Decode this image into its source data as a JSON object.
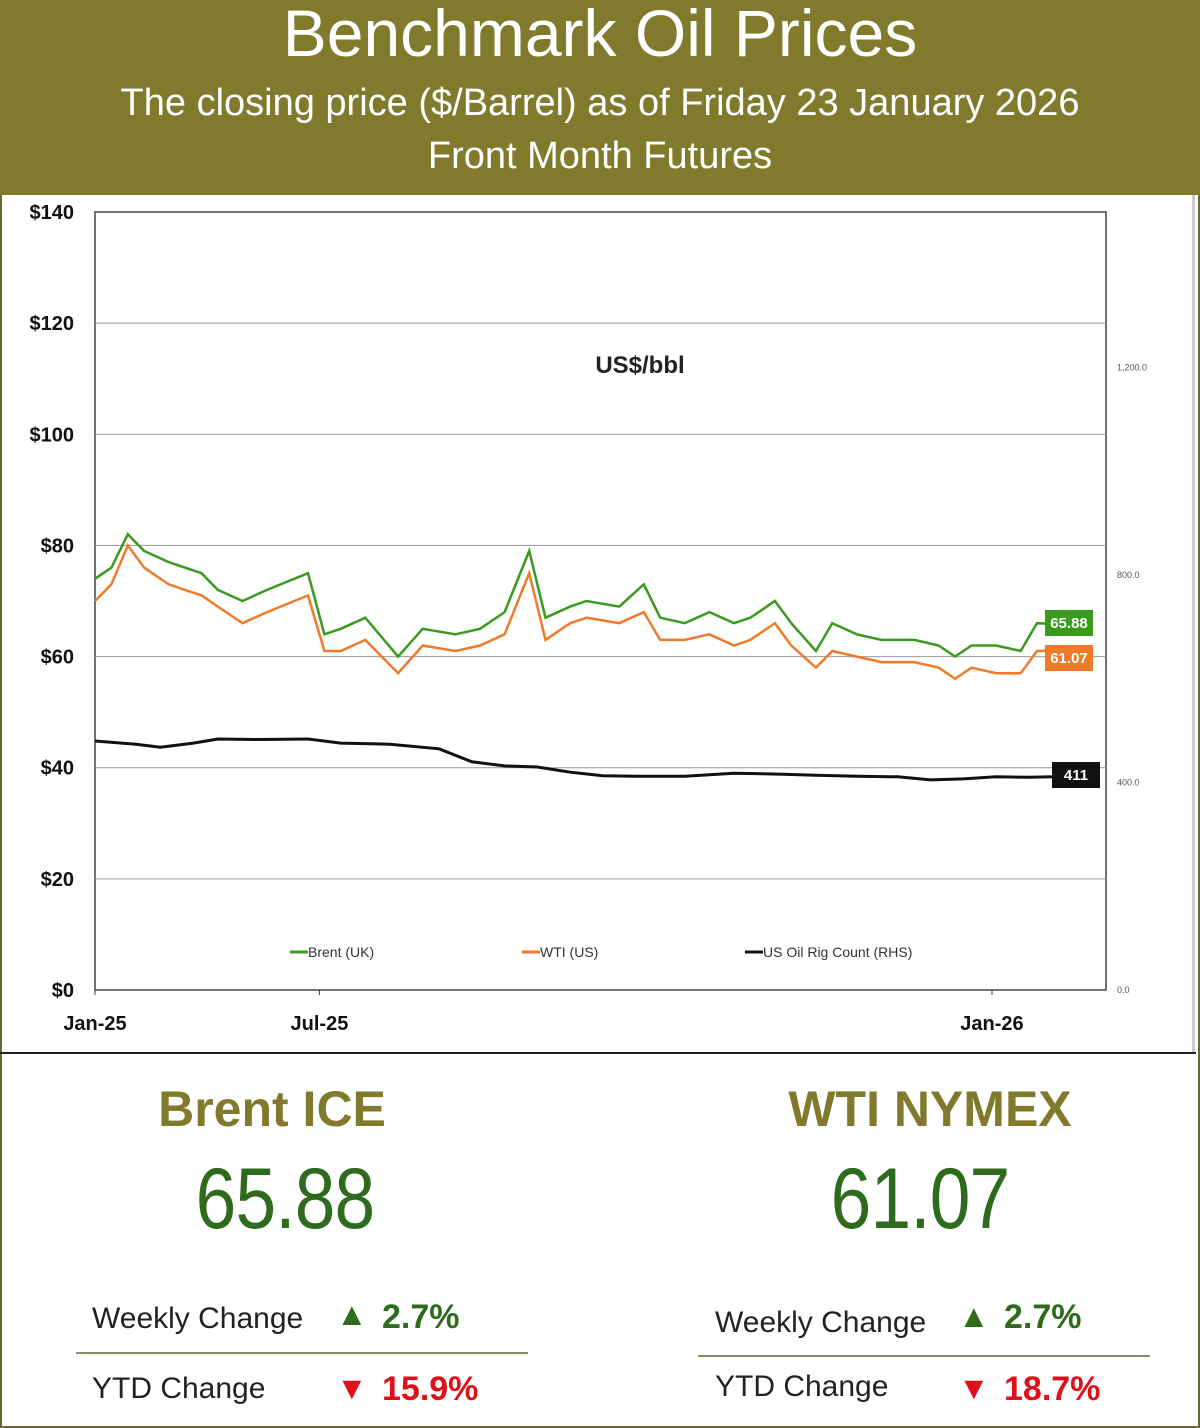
{
  "header": {
    "title": "Benchmark Oil Prices",
    "subtitle": "The closing price ($/Barrel) as of Friday 23 January 2026",
    "subtitle2": "Front Month  Futures"
  },
  "chart_data": {
    "type": "line",
    "title": "US$/bbl",
    "ylim": [
      0,
      140
    ],
    "y_ticks": [
      "$0",
      "$20",
      "$40",
      "$60",
      "$80",
      "$100",
      "$120",
      "$140"
    ],
    "y2_ticks": [
      "0.0",
      "400.0",
      "800.0",
      "1,200.0"
    ],
    "y2lim": [
      0,
      1500
    ],
    "x_ticks": [
      "Jan-25",
      "Jul-25",
      "Jan-26"
    ],
    "grid": true,
    "legend": "bottom",
    "series": [
      {
        "name": "Brent (UK)",
        "color": "#3a9a1e",
        "end_label": "65.88",
        "points": [
          [
            0,
            74
          ],
          [
            0.02,
            76
          ],
          [
            0.04,
            82
          ],
          [
            0.06,
            79
          ],
          [
            0.09,
            77
          ],
          [
            0.11,
            76
          ],
          [
            0.13,
            75
          ],
          [
            0.15,
            72
          ],
          [
            0.18,
            70
          ],
          [
            0.21,
            72
          ],
          [
            0.26,
            75
          ],
          [
            0.28,
            64
          ],
          [
            0.3,
            65
          ],
          [
            0.33,
            67
          ],
          [
            0.37,
            60
          ],
          [
            0.4,
            65
          ],
          [
            0.44,
            64
          ],
          [
            0.47,
            65
          ],
          [
            0.5,
            68
          ],
          [
            0.53,
            79
          ],
          [
            0.55,
            67
          ],
          [
            0.58,
            69
          ],
          [
            0.6,
            70
          ],
          [
            0.64,
            69
          ],
          [
            0.67,
            73
          ],
          [
            0.69,
            67
          ],
          [
            0.72,
            66
          ],
          [
            0.75,
            68
          ],
          [
            0.78,
            66
          ],
          [
            0.8,
            67
          ],
          [
            0.83,
            70
          ],
          [
            0.85,
            66
          ],
          [
            0.88,
            61
          ],
          [
            0.9,
            66
          ],
          [
            0.93,
            64
          ],
          [
            0.96,
            63
          ],
          [
            1.0,
            63
          ],
          [
            1.03,
            62
          ],
          [
            1.05,
            60
          ],
          [
            1.07,
            62
          ],
          [
            1.1,
            62
          ],
          [
            1.13,
            61
          ],
          [
            1.15,
            66
          ],
          [
            1.17,
            65.88
          ]
        ]
      },
      {
        "name": "WTI (US)",
        "color": "#f07a2a",
        "end_label": "61.07",
        "points": [
          [
            0,
            70
          ],
          [
            0.02,
            73
          ],
          [
            0.04,
            80
          ],
          [
            0.06,
            76
          ],
          [
            0.09,
            73
          ],
          [
            0.11,
            72
          ],
          [
            0.13,
            71
          ],
          [
            0.15,
            69
          ],
          [
            0.18,
            66
          ],
          [
            0.21,
            68
          ],
          [
            0.26,
            71
          ],
          [
            0.28,
            61
          ],
          [
            0.3,
            61
          ],
          [
            0.33,
            63
          ],
          [
            0.37,
            57
          ],
          [
            0.4,
            62
          ],
          [
            0.44,
            61
          ],
          [
            0.47,
            62
          ],
          [
            0.5,
            64
          ],
          [
            0.53,
            75
          ],
          [
            0.55,
            63
          ],
          [
            0.58,
            66
          ],
          [
            0.6,
            67
          ],
          [
            0.64,
            66
          ],
          [
            0.67,
            68
          ],
          [
            0.69,
            63
          ],
          [
            0.72,
            63
          ],
          [
            0.75,
            64
          ],
          [
            0.78,
            62
          ],
          [
            0.8,
            63
          ],
          [
            0.83,
            66
          ],
          [
            0.85,
            62
          ],
          [
            0.88,
            58
          ],
          [
            0.9,
            61
          ],
          [
            0.93,
            60
          ],
          [
            0.96,
            59
          ],
          [
            1.0,
            59
          ],
          [
            1.03,
            58
          ],
          [
            1.05,
            56
          ],
          [
            1.07,
            58
          ],
          [
            1.1,
            57
          ],
          [
            1.13,
            57
          ],
          [
            1.15,
            61
          ],
          [
            1.17,
            61.07
          ]
        ]
      },
      {
        "name": "US Oil Rig Count (RHS)",
        "color": "#111111",
        "axis": "right",
        "end_label": "411",
        "points": [
          [
            0,
            480
          ],
          [
            0.05,
            474
          ],
          [
            0.08,
            468
          ],
          [
            0.12,
            476
          ],
          [
            0.15,
            484
          ],
          [
            0.2,
            483
          ],
          [
            0.26,
            484
          ],
          [
            0.3,
            476
          ],
          [
            0.36,
            474
          ],
          [
            0.42,
            465
          ],
          [
            0.46,
            440
          ],
          [
            0.5,
            432
          ],
          [
            0.54,
            430
          ],
          [
            0.58,
            420
          ],
          [
            0.62,
            413
          ],
          [
            0.66,
            412
          ],
          [
            0.72,
            412
          ],
          [
            0.78,
            418
          ],
          [
            0.84,
            416
          ],
          [
            0.88,
            414
          ],
          [
            0.93,
            412
          ],
          [
            0.98,
            411
          ],
          [
            1.02,
            405
          ],
          [
            1.06,
            407
          ],
          [
            1.1,
            411
          ],
          [
            1.14,
            410
          ],
          [
            1.17,
            411
          ]
        ]
      }
    ]
  },
  "brent": {
    "name": "Brent ICE",
    "price": "65.88",
    "weekly_label": "Weekly Change",
    "weekly_value": "2.7%",
    "ytd_label": "YTD Change",
    "ytd_value": "15.9%"
  },
  "wti": {
    "name": "WTI NYMEX",
    "price": "61.07",
    "weekly_label": "Weekly Change",
    "weekly_value": "2.7%",
    "ytd_label": "YTD Change",
    "ytd_value": "18.7%"
  },
  "arrows": {
    "up": "▲",
    "down": "▼"
  }
}
